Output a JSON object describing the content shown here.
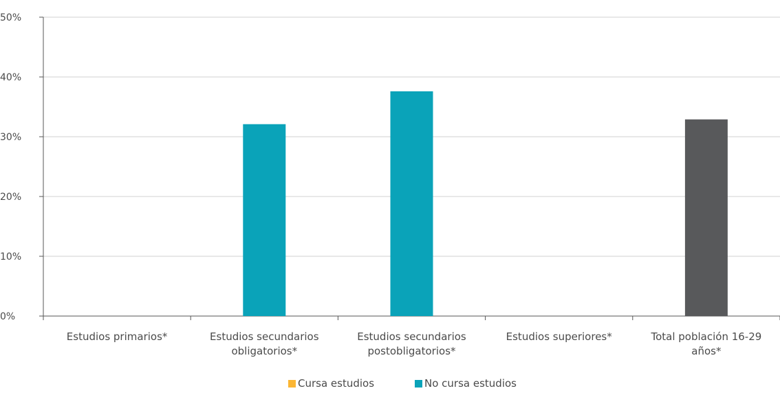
{
  "chart_data": {
    "type": "bar",
    "categories": [
      [
        "Estudios primarios*"
      ],
      [
        "Estudios secundarios",
        "obligatorios*"
      ],
      [
        "Estudios secundarios",
        "postobligatorios*"
      ],
      [
        "Estudios superiores*"
      ],
      [
        "Total población 16-29",
        "años*"
      ]
    ],
    "series": [
      {
        "name": "Cursa estudios",
        "color": "#fbb634",
        "values": [
          null,
          null,
          null,
          null,
          null
        ]
      },
      {
        "name": "No cursa estudios",
        "color": "#0aa3b9",
        "values": [
          null,
          32.1,
          37.6,
          null,
          null
        ]
      }
    ],
    "total_bar": {
      "category_index": 4,
      "value": 32.9,
      "color": "#58595b"
    },
    "ylim": [
      0,
      50
    ],
    "y_ticks": [
      "0%",
      "10%",
      "20%",
      "30%",
      "40%",
      "50%"
    ],
    "y_tick_values": [
      0,
      10,
      20,
      30,
      40,
      50
    ],
    "grid": true,
    "legend_position": "bottom",
    "title": "",
    "xlabel": "",
    "ylabel": ""
  }
}
